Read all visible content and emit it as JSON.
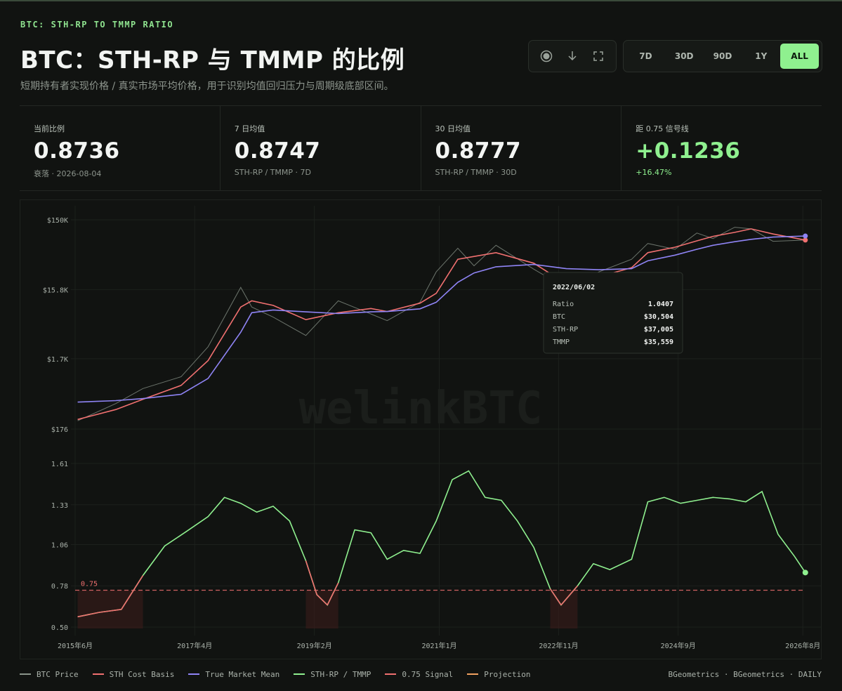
{
  "header": {
    "eyebrow": "BTC: STH-RP TO TMMP RATIO",
    "title": "BTC：STH-RP 与 TMMP 的比例",
    "subtitle": "短期持有者实现价格 / 真实市场平均价格，用于识别均值回归压力与周期级底部区间。"
  },
  "toolbar": {
    "icons": [
      "camera-icon",
      "download-icon",
      "fullscreen-icon"
    ],
    "ranges": [
      "7D",
      "30D",
      "90D",
      "1Y",
      "ALL"
    ],
    "active_range": "ALL"
  },
  "stats": [
    {
      "label": "当前比例",
      "value": "0.8736",
      "sub": "衰落 · 2026-08-04"
    },
    {
      "label": "7 日均值",
      "value": "0.8747",
      "sub": "STH-RP / TMMP · 7D"
    },
    {
      "label": "30 日均值",
      "value": "0.8777",
      "sub": "STH-RP / TMMP · 30D"
    },
    {
      "label": "距 0.75 信号线",
      "value": "+0.1236",
      "sub": "+16.47%"
    }
  ],
  "watermark": "welinkBTC",
  "tooltip": {
    "date": "2022/06/02",
    "rows": [
      {
        "label": "Ratio",
        "value": "1.0407"
      },
      {
        "label": "BTC",
        "value": "$30,504"
      },
      {
        "label": "STH-RP",
        "value": "$37,005"
      },
      {
        "label": "TMMP",
        "value": "$35,559"
      }
    ]
  },
  "legend": [
    {
      "label": "BTC Price",
      "color": "#8a948a"
    },
    {
      "label": "STH Cost Basis",
      "color": "#f07070"
    },
    {
      "label": "True Market Mean",
      "color": "#8f84f5"
    },
    {
      "label": "STH-RP / TMMP",
      "color": "#8ff08f"
    },
    {
      "label": "0.75 Signal",
      "color": "#f07070"
    },
    {
      "label": "Projection",
      "color": "#f0a060"
    }
  ],
  "source": "BGeometrics · BGeometrics · DAILY",
  "colors": {
    "accent": "#8ff08f",
    "btc": "#8a948a",
    "sth": "#f07070",
    "tmm": "#8f84f5",
    "ratio": "#8ff08f",
    "signal": "#f07070"
  },
  "chart_data": [
    {
      "type": "line",
      "title": "",
      "y_scale": "log",
      "ylim": [
        100,
        250000
      ],
      "y_ticks": [
        {
          "value": 150000,
          "label": "$150K"
        },
        {
          "value": 15800,
          "label": "$15.8K"
        },
        {
          "value": 1700,
          "label": "$1.7K"
        },
        {
          "value": 176,
          "label": "$176"
        }
      ],
      "x_ticks": [
        "2015年6月",
        "2017年4月",
        "2019年2月",
        "2021年1月",
        "2022年11月",
        "2024年9月",
        "2026年8月"
      ],
      "x_range": [
        "2015-06-01",
        "2026-08-04"
      ],
      "series": [
        {
          "name": "BTC Price",
          "x": [
            "2015-06",
            "2016-01",
            "2016-06",
            "2017-01",
            "2017-06",
            "2017-12",
            "2018-02",
            "2018-06",
            "2018-12",
            "2019-06",
            "2019-12",
            "2020-03",
            "2020-09",
            "2020-12",
            "2021-04",
            "2021-07",
            "2021-11",
            "2022-06",
            "2022-12",
            "2023-06",
            "2023-12",
            "2024-03",
            "2024-08",
            "2024-12",
            "2025-03",
            "2025-07",
            "2025-10",
            "2026-02",
            "2026-08"
          ],
          "y": [
            230,
            400,
            650,
            950,
            2500,
            17000,
            9000,
            6500,
            3600,
            11000,
            7200,
            5800,
            10500,
            28000,
            60000,
            34000,
            66000,
            30504,
            16500,
            28000,
            42000,
            70000,
            58000,
            98000,
            82000,
            118000,
            112000,
            75000,
            78000
          ]
        },
        {
          "name": "STH Cost Basis",
          "x": [
            "2015-06",
            "2016-01",
            "2016-06",
            "2017-01",
            "2017-06",
            "2017-12",
            "2018-02",
            "2018-06",
            "2018-12",
            "2019-06",
            "2019-12",
            "2020-03",
            "2020-09",
            "2020-12",
            "2021-04",
            "2021-07",
            "2021-11",
            "2022-06",
            "2022-12",
            "2023-06",
            "2023-12",
            "2024-03",
            "2024-08",
            "2024-12",
            "2025-03",
            "2025-07",
            "2025-10",
            "2026-02",
            "2026-08"
          ],
          "y": [
            240,
            330,
            460,
            720,
            1600,
            9000,
            11000,
            9500,
            6000,
            7500,
            8600,
            7800,
            10200,
            14000,
            42000,
            46000,
            52000,
            37005,
            19000,
            24000,
            32000,
            52000,
            62000,
            76000,
            88000,
            100000,
            112000,
            95000,
            78000
          ]
        },
        {
          "name": "True Market Mean",
          "x": [
            "2015-06",
            "2016-01",
            "2016-06",
            "2017-01",
            "2017-06",
            "2017-12",
            "2018-02",
            "2018-06",
            "2018-12",
            "2019-06",
            "2019-12",
            "2020-03",
            "2020-09",
            "2020-12",
            "2021-04",
            "2021-07",
            "2021-11",
            "2022-06",
            "2022-12",
            "2023-06",
            "2023-12",
            "2024-03",
            "2024-08",
            "2024-12",
            "2025-03",
            "2025-07",
            "2025-10",
            "2026-02",
            "2026-08"
          ],
          "y": [
            420,
            440,
            470,
            540,
            900,
            4000,
            7500,
            8200,
            7700,
            7300,
            7700,
            7800,
            8500,
            10500,
            20000,
            27000,
            33000,
            35559,
            31000,
            30000,
            31000,
            40000,
            48000,
            58000,
            66000,
            74000,
            80000,
            86000,
            89000
          ]
        }
      ]
    },
    {
      "type": "line",
      "title": "",
      "ylim": [
        0.5,
        1.65
      ],
      "y_ticks": [
        1.61,
        1.33,
        1.06,
        0.78,
        0.5
      ],
      "x_ticks": [
        "2015年6月",
        "2017年4月",
        "2019年2月",
        "2021年1月",
        "2022年11月",
        "2024年9月",
        "2026年8月"
      ],
      "signal_line": {
        "name": "0.75 Signal",
        "value": 0.75,
        "label": "0.75"
      },
      "series": [
        {
          "name": "STH-RP / TMMP",
          "x": [
            "2015-06",
            "2015-10",
            "2016-02",
            "2016-06",
            "2016-10",
            "2017-02",
            "2017-06",
            "2017-09",
            "2017-12",
            "2018-03",
            "2018-06",
            "2018-09",
            "2018-12",
            "2019-02",
            "2019-04",
            "2019-06",
            "2019-09",
            "2019-12",
            "2020-03",
            "2020-06",
            "2020-09",
            "2020-12",
            "2021-03",
            "2021-06",
            "2021-09",
            "2021-12",
            "2022-03",
            "2022-06",
            "2022-09",
            "2022-11",
            "2023-02",
            "2023-05",
            "2023-08",
            "2023-12",
            "2024-03",
            "2024-06",
            "2024-09",
            "2024-12",
            "2025-03",
            "2025-06",
            "2025-09",
            "2025-12",
            "2026-03",
            "2026-06",
            "2026-08"
          ],
          "y": [
            0.57,
            0.6,
            0.62,
            0.85,
            1.05,
            1.15,
            1.25,
            1.38,
            1.34,
            1.28,
            1.32,
            1.22,
            0.95,
            0.72,
            0.65,
            0.8,
            1.16,
            1.14,
            0.96,
            1.02,
            1.0,
            1.22,
            1.5,
            1.56,
            1.38,
            1.36,
            1.22,
            1.0407,
            0.76,
            0.65,
            0.78,
            0.93,
            0.89,
            0.96,
            1.35,
            1.38,
            1.34,
            1.36,
            1.38,
            1.37,
            1.35,
            1.42,
            1.13,
            0.98,
            0.87
          ]
        }
      ]
    }
  ]
}
